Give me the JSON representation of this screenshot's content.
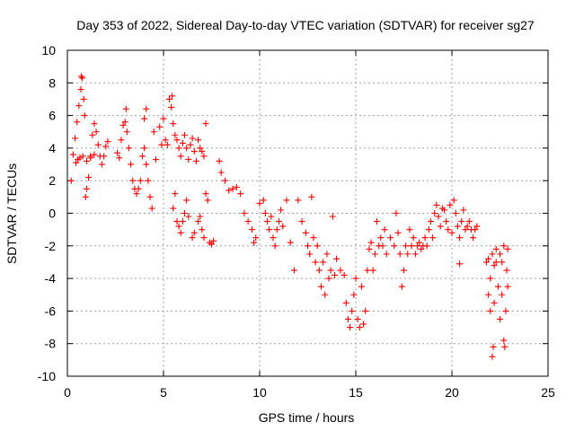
{
  "chart_data": {
    "type": "scatter",
    "title": "Day 353 of 2022, Sidereal Day-to-day VTEC variation (SDTVAR) for receiver sg27",
    "xlabel": "GPS time / hours",
    "ylabel": "SDTVAR / TECUs",
    "xlim": [
      0,
      25
    ],
    "ylim": [
      -10,
      10
    ],
    "xticks": [
      0,
      5,
      10,
      15,
      20,
      25
    ],
    "yticks": [
      -10,
      -8,
      -6,
      -4,
      -2,
      0,
      2,
      4,
      6,
      8,
      10
    ],
    "xtick_labels": [
      "0",
      "5",
      "10",
      "15",
      "20",
      "25"
    ],
    "ytick_labels": [
      "-10",
      "-8",
      "-6",
      "-4",
      "-2",
      "0",
      "2",
      "4",
      "6",
      "8",
      "10"
    ],
    "grid": true,
    "marker": "+",
    "color": "#ff0000",
    "series": [
      {
        "name": "SDTVAR",
        "points": [
          [
            0.2,
            2.0
          ],
          [
            0.3,
            3.6
          ],
          [
            0.4,
            4.6
          ],
          [
            0.5,
            5.6
          ],
          [
            0.6,
            6.6
          ],
          [
            0.7,
            7.6
          ],
          [
            0.72,
            8.4
          ],
          [
            0.78,
            8.3
          ],
          [
            0.85,
            7.0
          ],
          [
            0.9,
            6.0
          ],
          [
            0.95,
            1.0
          ],
          [
            1.0,
            1.5
          ],
          [
            1.1,
            2.2
          ],
          [
            1.2,
            3.5
          ],
          [
            1.3,
            4.8
          ],
          [
            1.4,
            5.5
          ],
          [
            1.5,
            5.0
          ],
          [
            1.6,
            4.2
          ],
          [
            1.7,
            3.5
          ],
          [
            1.8,
            3.0
          ],
          [
            1.9,
            3.5
          ],
          [
            2.0,
            4.1
          ],
          [
            2.1,
            4.4
          ],
          [
            0.45,
            3.1
          ],
          [
            0.55,
            3.3
          ],
          [
            0.65,
            3.4
          ],
          [
            0.8,
            3.5
          ],
          [
            1.0,
            3.2
          ],
          [
            1.2,
            3.4
          ],
          [
            1.4,
            3.6
          ],
          [
            2.6,
            3.7
          ],
          [
            2.7,
            3.4
          ],
          [
            2.8,
            4.5
          ],
          [
            2.9,
            5.4
          ],
          [
            3.0,
            5.6
          ],
          [
            3.05,
            6.4
          ],
          [
            3.1,
            5.0
          ],
          [
            3.2,
            4.0
          ],
          [
            3.3,
            3.0
          ],
          [
            3.4,
            2.0
          ],
          [
            3.5,
            1.5
          ],
          [
            3.6,
            1.2
          ],
          [
            3.7,
            1.5
          ],
          [
            3.8,
            2.0
          ],
          [
            3.9,
            3.5
          ],
          [
            4.0,
            4.0
          ],
          [
            4.1,
            3.0
          ],
          [
            4.2,
            2.0
          ],
          [
            4.3,
            1.0
          ],
          [
            4.4,
            0.3
          ],
          [
            4.0,
            5.8
          ],
          [
            4.1,
            6.4
          ],
          [
            4.5,
            5.0
          ],
          [
            4.6,
            3.3
          ],
          [
            4.8,
            5.3
          ],
          [
            4.9,
            4.2
          ],
          [
            5.0,
            5.8
          ],
          [
            5.1,
            4.5
          ],
          [
            5.2,
            4.2
          ],
          [
            5.3,
            7.0
          ],
          [
            5.4,
            6.5
          ],
          [
            5.45,
            7.2
          ],
          [
            5.5,
            5.5
          ],
          [
            5.6,
            4.8
          ],
          [
            5.7,
            4.5
          ],
          [
            5.8,
            4.0
          ],
          [
            5.9,
            3.5
          ],
          [
            6.0,
            4.3
          ],
          [
            6.1,
            4.8
          ],
          [
            6.2,
            4.0
          ],
          [
            6.3,
            3.3
          ],
          [
            6.4,
            4.2
          ],
          [
            6.5,
            4.6
          ],
          [
            6.6,
            3.8
          ],
          [
            6.7,
            3.2
          ],
          [
            6.8,
            4.5
          ],
          [
            6.9,
            4.0
          ],
          [
            7.0,
            3.8
          ],
          [
            7.1,
            3.5
          ],
          [
            7.2,
            5.5
          ],
          [
            5.5,
            0.3
          ],
          [
            5.6,
            1.2
          ],
          [
            5.7,
            -0.5
          ],
          [
            5.8,
            -0.8
          ],
          [
            5.9,
            -1.2
          ],
          [
            6.0,
            -0.5
          ],
          [
            6.1,
            0.0
          ],
          [
            6.2,
            0.8
          ],
          [
            6.3,
            -0.2
          ],
          [
            6.5,
            -1.5
          ],
          [
            6.6,
            -1.2
          ],
          [
            6.8,
            -0.5
          ],
          [
            6.9,
            -0.2
          ],
          [
            7.0,
            -1.0
          ],
          [
            7.1,
            -1.5
          ],
          [
            7.2,
            1.2
          ],
          [
            7.3,
            0.8
          ],
          [
            7.4,
            -1.8
          ],
          [
            7.5,
            -1.9
          ],
          [
            7.6,
            -1.7
          ],
          [
            7.9,
            3.2
          ],
          [
            8.0,
            2.5
          ],
          [
            8.2,
            2.0
          ],
          [
            8.4,
            1.4
          ],
          [
            8.6,
            1.5
          ],
          [
            8.8,
            1.6
          ],
          [
            9.0,
            1.2
          ],
          [
            9.2,
            0.0
          ],
          [
            9.4,
            -0.5
          ],
          [
            9.6,
            -1.0
          ],
          [
            9.7,
            -1.8
          ],
          [
            9.8,
            -1.5
          ],
          [
            10.0,
            0.6
          ],
          [
            10.2,
            0.8
          ],
          [
            10.3,
            0.0
          ],
          [
            10.4,
            -0.5
          ],
          [
            10.5,
            -1.0
          ],
          [
            10.6,
            -0.2
          ],
          [
            10.7,
            -1.5
          ],
          [
            10.8,
            -2.0
          ],
          [
            10.9,
            -1.0
          ],
          [
            11.0,
            -0.5
          ],
          [
            11.1,
            0.2
          ],
          [
            11.2,
            -0.8
          ],
          [
            11.4,
            0.8
          ],
          [
            11.6,
            -1.8
          ],
          [
            11.8,
            -3.5
          ],
          [
            12.0,
            0.8
          ],
          [
            12.2,
            -0.5
          ],
          [
            12.4,
            -1.2
          ],
          [
            12.5,
            -2.0
          ],
          [
            12.6,
            -2.5
          ],
          [
            12.7,
            1.0
          ],
          [
            12.8,
            -1.5
          ],
          [
            12.9,
            -3.0
          ],
          [
            13.0,
            -2.0
          ],
          [
            13.1,
            -3.5
          ],
          [
            13.2,
            -4.5
          ],
          [
            13.3,
            -3.0
          ],
          [
            13.4,
            -5.0
          ],
          [
            13.5,
            -2.5
          ],
          [
            13.6,
            -4.0
          ],
          [
            13.7,
            -3.5
          ],
          [
            13.8,
            -0.2
          ],
          [
            13.9,
            -3.8
          ],
          [
            14.0,
            -2.8
          ],
          [
            14.2,
            -3.5
          ],
          [
            14.4,
            -3.8
          ],
          [
            14.5,
            -5.5
          ],
          [
            14.6,
            -6.5
          ],
          [
            14.7,
            -7.0
          ],
          [
            14.8,
            -6.0
          ],
          [
            14.9,
            -5.0
          ],
          [
            15.0,
            -4.0
          ],
          [
            15.1,
            -6.5
          ],
          [
            15.2,
            -7.0
          ],
          [
            15.3,
            -4.5
          ],
          [
            15.4,
            -6.8
          ],
          [
            15.5,
            -6.0
          ],
          [
            15.6,
            -3.5
          ],
          [
            15.7,
            -2.2
          ],
          [
            15.8,
            -1.8
          ],
          [
            15.9,
            -3.5
          ],
          [
            16.0,
            -2.5
          ],
          [
            16.1,
            -0.5
          ],
          [
            16.2,
            -2.0
          ],
          [
            16.3,
            -1.5
          ],
          [
            16.4,
            -2.0
          ],
          [
            16.5,
            -1.0
          ],
          [
            16.6,
            -2.5
          ],
          [
            16.8,
            -1.5
          ],
          [
            17.0,
            -2.0
          ],
          [
            17.1,
            0.0
          ],
          [
            17.2,
            -1.2
          ],
          [
            17.3,
            -2.5
          ],
          [
            17.4,
            -4.5
          ],
          [
            17.5,
            -3.5
          ],
          [
            17.6,
            -2.0
          ],
          [
            17.7,
            -2.5
          ],
          [
            17.8,
            -1.0
          ],
          [
            17.9,
            -2.0
          ],
          [
            18.0,
            -1.5
          ],
          [
            18.1,
            -2.5
          ],
          [
            18.2,
            -2.0
          ],
          [
            18.3,
            -1.8
          ],
          [
            18.4,
            -2.2
          ],
          [
            18.5,
            -2.0
          ],
          [
            18.6,
            -1.5
          ],
          [
            18.7,
            -2.0
          ],
          [
            18.8,
            -1.0
          ],
          [
            18.9,
            -0.5
          ],
          [
            19.0,
            -1.5
          ],
          [
            19.1,
            0.0
          ],
          [
            19.2,
            0.5
          ],
          [
            19.3,
            -0.2
          ],
          [
            19.4,
            -0.8
          ],
          [
            19.5,
            0.3
          ],
          [
            19.6,
            0.2
          ],
          [
            19.7,
            -0.5
          ],
          [
            19.8,
            -1.0
          ],
          [
            19.9,
            0.5
          ],
          [
            20.0,
            -1.2
          ],
          [
            20.1,
            0.8
          ],
          [
            20.2,
            0.0
          ],
          [
            20.3,
            -0.8
          ],
          [
            20.4,
            -1.5
          ],
          [
            20.5,
            -0.5
          ],
          [
            20.6,
            0.2
          ],
          [
            20.7,
            -1.0
          ],
          [
            20.8,
            -0.8
          ],
          [
            20.9,
            -0.5
          ],
          [
            21.0,
            -1.0
          ],
          [
            21.1,
            -1.5
          ],
          [
            21.2,
            -1.0
          ],
          [
            21.3,
            -0.8
          ],
          [
            20.4,
            -3.1
          ],
          [
            21.8,
            -3.0
          ],
          [
            21.9,
            -5.0
          ],
          [
            22.0,
            -6.0
          ],
          [
            22.1,
            -8.8
          ],
          [
            22.15,
            -8.2
          ],
          [
            22.2,
            -5.5
          ],
          [
            22.3,
            -3.0
          ],
          [
            22.4,
            -4.5
          ],
          [
            22.5,
            -6.5
          ],
          [
            22.6,
            -5.0
          ],
          [
            22.7,
            -7.8
          ],
          [
            22.75,
            -8.2
          ],
          [
            22.8,
            -6.0
          ],
          [
            22.9,
            -2.2
          ],
          [
            22.1,
            -2.5
          ],
          [
            22.3,
            -2.2
          ],
          [
            22.5,
            -2.5
          ],
          [
            22.7,
            -2.0
          ],
          [
            22.85,
            -3.5
          ],
          [
            22.9,
            -4.5
          ],
          [
            22.2,
            -3.2
          ],
          [
            22.6,
            -3.0
          ],
          [
            21.9,
            -2.8
          ],
          [
            22.0,
            -4.0
          ]
        ]
      }
    ]
  }
}
